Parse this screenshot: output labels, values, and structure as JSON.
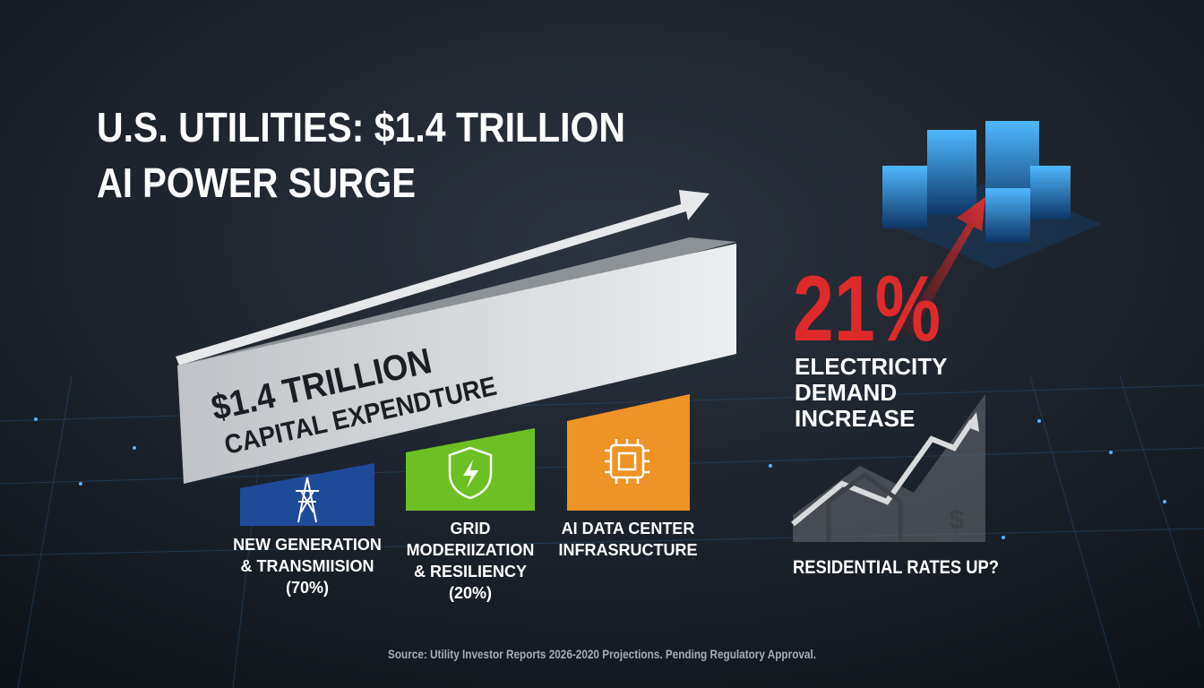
{
  "header": {
    "title_lines": [
      "U.S. UTILITIES: $1.4 TRILLION",
      "AI POWER SURGE"
    ]
  },
  "capex": {
    "amount": "$1.4 TRILLION",
    "label": "CAPITAL EXPENDTURE"
  },
  "segments": [
    {
      "lines": [
        "NEW GENERATION",
        "& TRANSMIISION",
        "(70%)"
      ]
    },
    {
      "lines": [
        "GRID",
        "MODERIIZATION",
        "& RESILIENCY",
        "(20%)"
      ]
    },
    {
      "lines": [
        "AI DATA CENTER",
        "INFRASRUCTURE"
      ]
    }
  ],
  "demand": {
    "figure": "21%",
    "lines": [
      "ELECTRICITY",
      "DEMAND",
      "INCREASE"
    ]
  },
  "rates": {
    "icon_symbol": "$",
    "label": "RESIDENTIAL RATES UP?"
  },
  "footer": {
    "source": "Source: Utility Investor Reports 2026-2020 Projections. Pending Regulatory Approval."
  }
}
